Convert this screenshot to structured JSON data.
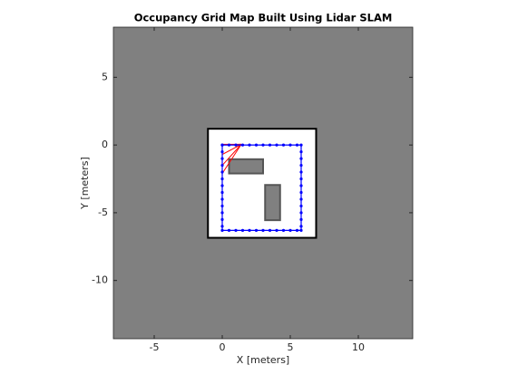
{
  "chart_data": {
    "type": "occupancy_map",
    "title": "Occupancy Grid Map Built Using Lidar SLAM",
    "xlabel": "X [meters]",
    "ylabel": "Y [meters]",
    "xlim": [
      -8,
      14
    ],
    "ylim": [
      -14.3,
      8.7
    ],
    "xticks": [
      -5,
      0,
      5,
      10
    ],
    "yticks": [
      -10,
      -5,
      0,
      5
    ],
    "background": "#808080",
    "free_color": "#ffffff",
    "wall_color": "#000000",
    "free_space": {
      "x": [
        -1.05,
        6.9
      ],
      "y": [
        -6.85,
        1.2
      ]
    },
    "obstacles": [
      {
        "x": [
          0.5,
          3.0
        ],
        "y": [
          -2.1,
          -1.05
        ]
      },
      {
        "x": [
          3.15,
          4.25
        ],
        "y": [
          -5.55,
          -2.95
        ]
      }
    ],
    "path": {
      "color": "#0000ff",
      "x": [
        0,
        0.5,
        1,
        1.5,
        2,
        2.5,
        3,
        3.5,
        4,
        4.5,
        5,
        5.5,
        5.8,
        5.8,
        5.8,
        5.8,
        5.8,
        5.8,
        5.8,
        5.8,
        5.8,
        5.8,
        5.8,
        5.8,
        5.8,
        5.8,
        5.5,
        5,
        4.5,
        4,
        3.5,
        3,
        2.5,
        2,
        1.5,
        1,
        0.5,
        0,
        0,
        0,
        0,
        0,
        0,
        0,
        0,
        0,
        0,
        0,
        0,
        0,
        0
      ],
      "y": [
        0,
        0,
        0,
        0,
        0,
        0,
        0,
        0,
        0,
        0,
        0,
        0,
        0,
        -0.5,
        -1,
        -1.5,
        -2,
        -2.5,
        -3,
        -3.5,
        -4,
        -4.5,
        -5,
        -5.5,
        -6,
        -6.3,
        -6.3,
        -6.3,
        -6.3,
        -6.3,
        -6.3,
        -6.3,
        -6.3,
        -6.3,
        -6.3,
        -6.3,
        -6.3,
        -6.3,
        -6,
        -5.5,
        -5,
        -4.5,
        -4,
        -3.5,
        -3,
        -2.5,
        -2,
        -1.5,
        -1,
        -0.5,
        0
      ]
    },
    "rays": {
      "color": "#ff0000",
      "origin": [
        1.4,
        0.05
      ],
      "x": [
        0,
        0,
        0,
        0,
        1.2
      ],
      "y": [
        0.05,
        -0.7,
        -1.5,
        -2.1,
        0.05
      ]
    }
  }
}
